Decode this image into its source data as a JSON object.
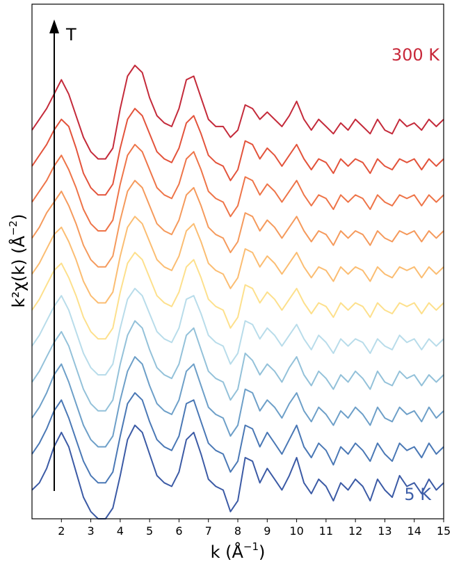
{
  "chart_data": {
    "type": "line",
    "xlabel": "k (Å",
    "xlabel_sup": "−1",
    "xlabel_close": ")",
    "ylabel": "k²χ(k) (Å",
    "ylabel_sup": "−2",
    "ylabel_close": ")",
    "xlim": [
      1.0,
      15.0
    ],
    "ylim": [
      -0.8,
      13.5
    ],
    "x_ticks": [
      2,
      3,
      4,
      5,
      6,
      7,
      8,
      9,
      10,
      11,
      12,
      13,
      14,
      15
    ],
    "y_ticks_shown": false,
    "grid": false,
    "arrow_label": "T",
    "labels": {
      "top": "300 K",
      "bottom": "5 K"
    },
    "colors": {
      "top_label": "#c8283a",
      "bottom_label": "#3d5ea8",
      "series": [
        "#3b5aa5",
        "#4a78b5",
        "#6d9fc8",
        "#93c1d9",
        "#b8dcea",
        "#fde08c",
        "#fbbd72",
        "#f59a5c",
        "#ee7448",
        "#e3533b",
        "#c42a3a"
      ]
    },
    "x": [
      1.0,
      1.25,
      1.5,
      1.75,
      2.0,
      2.25,
      2.5,
      2.75,
      3.0,
      3.25,
      3.5,
      3.75,
      4.0,
      4.25,
      4.5,
      4.75,
      5.0,
      5.25,
      5.5,
      5.75,
      6.0,
      6.25,
      6.5,
      6.75,
      7.0,
      7.25,
      7.5,
      7.75,
      8.0,
      8.25,
      8.5,
      8.75,
      9.0,
      9.25,
      9.5,
      9.75,
      10.0,
      10.25,
      10.5,
      10.75,
      11.0,
      11.25,
      11.5,
      11.75,
      12.0,
      12.25,
      12.5,
      12.75,
      13.0,
      13.25,
      13.5,
      13.75,
      14.0,
      14.25,
      14.5,
      14.75,
      15.0
    ],
    "series": [
      {
        "temperature_order": 1,
        "offset": 0.0,
        "values": [
          0.0,
          0.2,
          0.6,
          1.2,
          1.6,
          1.2,
          0.5,
          -0.2,
          -0.6,
          -0.8,
          -0.8,
          -0.5,
          0.4,
          1.4,
          1.8,
          1.6,
          1.0,
          0.4,
          0.2,
          0.1,
          0.5,
          1.4,
          1.6,
          1.0,
          0.3,
          0.1,
          0.0,
          -0.6,
          -0.3,
          0.9,
          0.8,
          0.2,
          0.6,
          0.3,
          0.0,
          0.4,
          0.9,
          0.2,
          -0.1,
          0.3,
          0.1,
          -0.3,
          0.2,
          0.0,
          0.3,
          0.1,
          -0.3,
          0.3,
          0.0,
          -0.2,
          0.4,
          0.1,
          0.2,
          -0.1,
          0.3,
          0.0,
          0.2
        ]
      },
      {
        "temperature_order": 2,
        "offset": 1.0,
        "values": [
          0.0,
          0.3,
          0.7,
          1.2,
          1.5,
          1.0,
          0.4,
          -0.2,
          -0.6,
          -0.8,
          -0.8,
          -0.5,
          0.5,
          1.4,
          1.7,
          1.5,
          0.9,
          0.4,
          0.2,
          0.1,
          0.5,
          1.4,
          1.5,
          0.9,
          0.3,
          0.1,
          0.0,
          -0.5,
          -0.2,
          0.8,
          0.7,
          0.2,
          0.6,
          0.3,
          0.0,
          0.4,
          0.8,
          0.2,
          -0.1,
          0.3,
          0.1,
          -0.3,
          0.2,
          0.0,
          0.3,
          0.1,
          -0.2,
          0.3,
          0.0,
          -0.2,
          0.3,
          0.1,
          0.2,
          -0.1,
          0.3,
          0.0,
          0.2
        ]
      },
      {
        "temperature_order": 3,
        "offset": 2.0,
        "values": [
          0.0,
          0.3,
          0.7,
          1.2,
          1.5,
          1.0,
          0.4,
          -0.2,
          -0.6,
          -0.8,
          -0.8,
          -0.5,
          0.5,
          1.3,
          1.7,
          1.5,
          0.9,
          0.4,
          0.2,
          0.1,
          0.5,
          1.3,
          1.5,
          0.9,
          0.3,
          0.1,
          0.0,
          -0.5,
          -0.2,
          0.8,
          0.7,
          0.2,
          0.5,
          0.3,
          0.0,
          0.4,
          0.7,
          0.2,
          -0.1,
          0.3,
          0.1,
          -0.2,
          0.2,
          0.0,
          0.3,
          0.1,
          -0.2,
          0.3,
          0.0,
          -0.1,
          0.3,
          0.1,
          0.2,
          -0.1,
          0.3,
          0.0,
          0.2
        ]
      },
      {
        "temperature_order": 4,
        "offset": 3.0,
        "values": [
          0.0,
          0.3,
          0.7,
          1.1,
          1.4,
          1.0,
          0.4,
          -0.2,
          -0.6,
          -0.8,
          -0.8,
          -0.5,
          0.5,
          1.3,
          1.7,
          1.5,
          0.9,
          0.4,
          0.2,
          0.1,
          0.5,
          1.3,
          1.5,
          0.9,
          0.3,
          0.1,
          0.0,
          -0.5,
          -0.2,
          0.8,
          0.6,
          0.2,
          0.5,
          0.3,
          0.0,
          0.4,
          0.7,
          0.2,
          -0.1,
          0.3,
          0.1,
          -0.2,
          0.2,
          0.0,
          0.3,
          0.1,
          -0.2,
          0.3,
          0.0,
          -0.1,
          0.3,
          0.1,
          0.2,
          -0.1,
          0.2,
          0.0,
          0.2
        ]
      },
      {
        "temperature_order": 5,
        "offset": 4.0,
        "values": [
          0.0,
          0.3,
          0.7,
          1.1,
          1.4,
          1.0,
          0.4,
          -0.2,
          -0.6,
          -0.8,
          -0.8,
          -0.5,
          0.5,
          1.3,
          1.6,
          1.4,
          0.9,
          0.4,
          0.2,
          0.1,
          0.5,
          1.3,
          1.4,
          0.9,
          0.3,
          0.1,
          0.0,
          -0.5,
          -0.2,
          0.7,
          0.6,
          0.2,
          0.5,
          0.3,
          0.0,
          0.3,
          0.6,
          0.2,
          -0.1,
          0.3,
          0.1,
          -0.2,
          0.2,
          0.0,
          0.2,
          0.1,
          -0.2,
          0.2,
          0.0,
          -0.1,
          0.3,
          0.1,
          0.2,
          -0.1,
          0.2,
          0.0,
          0.2
        ]
      },
      {
        "temperature_order": 6,
        "offset": 5.0,
        "values": [
          0.0,
          0.3,
          0.7,
          1.1,
          1.3,
          0.9,
          0.4,
          -0.2,
          -0.6,
          -0.8,
          -0.8,
          -0.5,
          0.5,
          1.3,
          1.6,
          1.4,
          0.9,
          0.4,
          0.2,
          0.1,
          0.5,
          1.2,
          1.4,
          0.9,
          0.3,
          0.1,
          0.0,
          -0.5,
          -0.2,
          0.7,
          0.6,
          0.2,
          0.5,
          0.3,
          0.0,
          0.3,
          0.6,
          0.2,
          -0.1,
          0.2,
          0.1,
          -0.2,
          0.2,
          0.0,
          0.2,
          0.1,
          -0.2,
          0.2,
          0.0,
          -0.1,
          0.2,
          0.1,
          0.2,
          -0.1,
          0.2,
          0.0,
          0.2
        ]
      },
      {
        "temperature_order": 7,
        "offset": 6.0,
        "values": [
          0.0,
          0.3,
          0.7,
          1.1,
          1.3,
          0.9,
          0.4,
          -0.2,
          -0.6,
          -0.8,
          -0.8,
          -0.5,
          0.5,
          1.3,
          1.6,
          1.4,
          0.9,
          0.4,
          0.2,
          0.1,
          0.5,
          1.2,
          1.4,
          0.9,
          0.3,
          0.1,
          0.0,
          -0.4,
          -0.1,
          0.7,
          0.6,
          0.2,
          0.5,
          0.3,
          0.0,
          0.3,
          0.6,
          0.2,
          -0.1,
          0.2,
          0.1,
          -0.2,
          0.2,
          0.0,
          0.2,
          0.1,
          -0.2,
          0.2,
          0.0,
          -0.1,
          0.2,
          0.1,
          0.2,
          -0.1,
          0.2,
          0.0,
          0.2
        ]
      },
      {
        "temperature_order": 8,
        "offset": 7.0,
        "values": [
          0.0,
          0.3,
          0.7,
          1.0,
          1.3,
          0.9,
          0.4,
          -0.2,
          -0.6,
          -0.8,
          -0.8,
          -0.5,
          0.5,
          1.3,
          1.6,
          1.4,
          0.9,
          0.4,
          0.2,
          0.1,
          0.5,
          1.2,
          1.4,
          0.9,
          0.3,
          0.1,
          0.0,
          -0.4,
          -0.1,
          0.7,
          0.6,
          0.2,
          0.5,
          0.3,
          0.0,
          0.3,
          0.6,
          0.2,
          -0.1,
          0.2,
          0.1,
          -0.2,
          0.2,
          0.0,
          0.2,
          0.1,
          -0.2,
          0.2,
          0.0,
          -0.1,
          0.2,
          0.1,
          0.2,
          -0.1,
          0.2,
          0.0,
          0.2
        ]
      },
      {
        "temperature_order": 9,
        "offset": 8.0,
        "values": [
          0.0,
          0.3,
          0.6,
          1.0,
          1.3,
          0.9,
          0.4,
          -0.2,
          -0.6,
          -0.8,
          -0.8,
          -0.5,
          0.5,
          1.3,
          1.6,
          1.4,
          0.9,
          0.4,
          0.2,
          0.1,
          0.5,
          1.2,
          1.4,
          0.9,
          0.3,
          0.1,
          0.0,
          -0.4,
          -0.1,
          0.7,
          0.6,
          0.2,
          0.5,
          0.3,
          0.0,
          0.3,
          0.6,
          0.2,
          -0.1,
          0.2,
          0.1,
          -0.2,
          0.2,
          0.0,
          0.2,
          0.1,
          -0.2,
          0.2,
          0.0,
          -0.1,
          0.2,
          0.1,
          0.2,
          -0.1,
          0.2,
          0.0,
          0.2
        ]
      },
      {
        "temperature_order": 10,
        "offset": 9.0,
        "values": [
          0.0,
          0.3,
          0.6,
          1.0,
          1.3,
          1.1,
          0.5,
          -0.2,
          -0.6,
          -0.8,
          -0.8,
          -0.5,
          0.5,
          1.3,
          1.6,
          1.4,
          0.9,
          0.4,
          0.2,
          0.1,
          0.5,
          1.2,
          1.4,
          0.9,
          0.3,
          0.1,
          0.0,
          -0.4,
          -0.1,
          0.7,
          0.6,
          0.2,
          0.5,
          0.3,
          0.0,
          0.3,
          0.6,
          0.2,
          -0.1,
          0.2,
          0.1,
          -0.2,
          0.2,
          0.0,
          0.2,
          0.1,
          -0.2,
          0.2,
          0.0,
          -0.1,
          0.2,
          0.1,
          0.2,
          -0.1,
          0.2,
          0.0,
          0.2
        ]
      },
      {
        "temperature_order": 11,
        "offset": 10.0,
        "values": [
          0.0,
          0.3,
          0.6,
          1.0,
          1.4,
          1.0,
          0.4,
          -0.2,
          -0.6,
          -0.8,
          -0.8,
          -0.5,
          0.6,
          1.5,
          1.8,
          1.6,
          0.9,
          0.4,
          0.2,
          0.1,
          0.6,
          1.4,
          1.5,
          0.9,
          0.3,
          0.1,
          0.1,
          -0.2,
          0.0,
          0.7,
          0.6,
          0.3,
          0.5,
          0.3,
          0.1,
          0.4,
          0.8,
          0.3,
          0.0,
          0.3,
          0.1,
          -0.1,
          0.2,
          0.0,
          0.3,
          0.1,
          -0.1,
          0.3,
          0.0,
          -0.1,
          0.3,
          0.1,
          0.2,
          0.0,
          0.3,
          0.1,
          0.3
        ]
      }
    ]
  }
}
